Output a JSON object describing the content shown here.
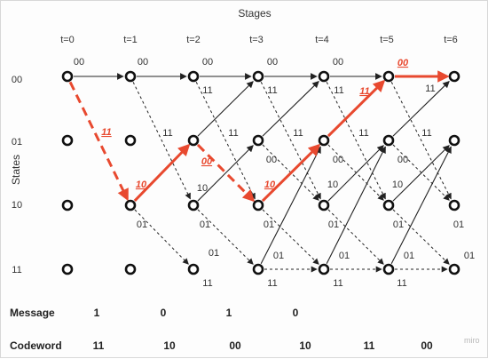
{
  "title": "Stages",
  "y_axis_label": "States",
  "stage_labels": [
    "t=0",
    "t=1",
    "t=2",
    "t=3",
    "t=4",
    "t=5",
    "t=6"
  ],
  "state_labels": [
    "00",
    "01",
    "10",
    "11"
  ],
  "transition_labels": {
    "from00_stay": "00",
    "from00_down": "11",
    "from01_up": "11",
    "from01_down": "00",
    "from10_up": "10",
    "from10_down": "01",
    "from11_up": "01",
    "from11_stay": "11"
  },
  "highlighted_path_labels": [
    "11",
    "10",
    "00",
    "10",
    "11",
    "00"
  ],
  "message": {
    "label": "Message",
    "bits": [
      "1",
      "0",
      "1",
      "0"
    ]
  },
  "codeword": {
    "label": "Codeword",
    "symbols": [
      "11",
      "10",
      "00",
      "10",
      "11",
      "00"
    ]
  },
  "watermark": "miro",
  "colors": {
    "highlight": "#e8492f",
    "edge": "#222222",
    "node": "#111111"
  }
}
